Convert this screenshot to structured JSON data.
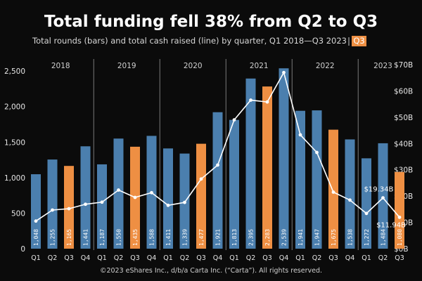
{
  "chart_data": {
    "type": "bar",
    "title": "Total funding fell 38% from Q2 to Q3",
    "subtitle": "Total rounds (bars) and total cash raised (line) by quarter, Q1 2018—Q3 2023",
    "subtitle_tag": "Q3",
    "years": [
      "2018",
      "2019",
      "2020",
      "2021",
      "2022",
      "2023"
    ],
    "categories": [
      "Q1",
      "Q2",
      "Q3",
      "Q4",
      "Q1",
      "Q2",
      "Q3",
      "Q4",
      "Q1",
      "Q2",
      "Q3",
      "Q4",
      "Q1",
      "Q2",
      "Q3",
      "Q4",
      "Q1",
      "Q2",
      "Q3",
      "Q4",
      "Q1",
      "Q2",
      "Q3"
    ],
    "series": [
      {
        "name": "Total rounds",
        "type": "bar",
        "values": [
          1048,
          1255,
          1165,
          1441,
          1187,
          1550,
          1435,
          1588,
          1411,
          1339,
          1477,
          1921,
          1813,
          2395,
          2283,
          2539,
          1941,
          1947,
          1675,
          1538,
          1272,
          1484,
          1080
        ]
      },
      {
        "name": "Total cash raised",
        "type": "line",
        "values": [
          10.5,
          14.7,
          15.2,
          16.9,
          17.7,
          22.3,
          19.5,
          21.3,
          16.5,
          17.6,
          26.5,
          31.8,
          49,
          56.5,
          55.8,
          67,
          43.3,
          36.6,
          21.5,
          18.5,
          13.4,
          19.34,
          11.94
        ]
      }
    ],
    "highlight_indices": [
      2,
      6,
      10,
      14,
      18,
      22
    ],
    "y_left": {
      "ticks": [
        "0",
        "500",
        "1,000",
        "1,500",
        "2,000",
        "2,500"
      ],
      "ylim": [
        0,
        2650
      ]
    },
    "y_right": {
      "ticks": [
        "$0B",
        "$10B",
        "$20B",
        "$30B",
        "$40B",
        "$50B",
        "$60B",
        "$70B"
      ],
      "ylim": [
        0,
        70
      ]
    },
    "annotations": [
      "$19.34B",
      "$11.94B"
    ],
    "grid": false,
    "footer": "©2023 eShares Inc., d/b/a Carta Inc. (“Carta”). All rights reserved."
  },
  "colors": {
    "background": "#0b0b0b",
    "bar_default": "#4b7fae",
    "bar_highlight": "#ee8f43",
    "line": "#ffffff",
    "divider": "#7a7a7a"
  }
}
